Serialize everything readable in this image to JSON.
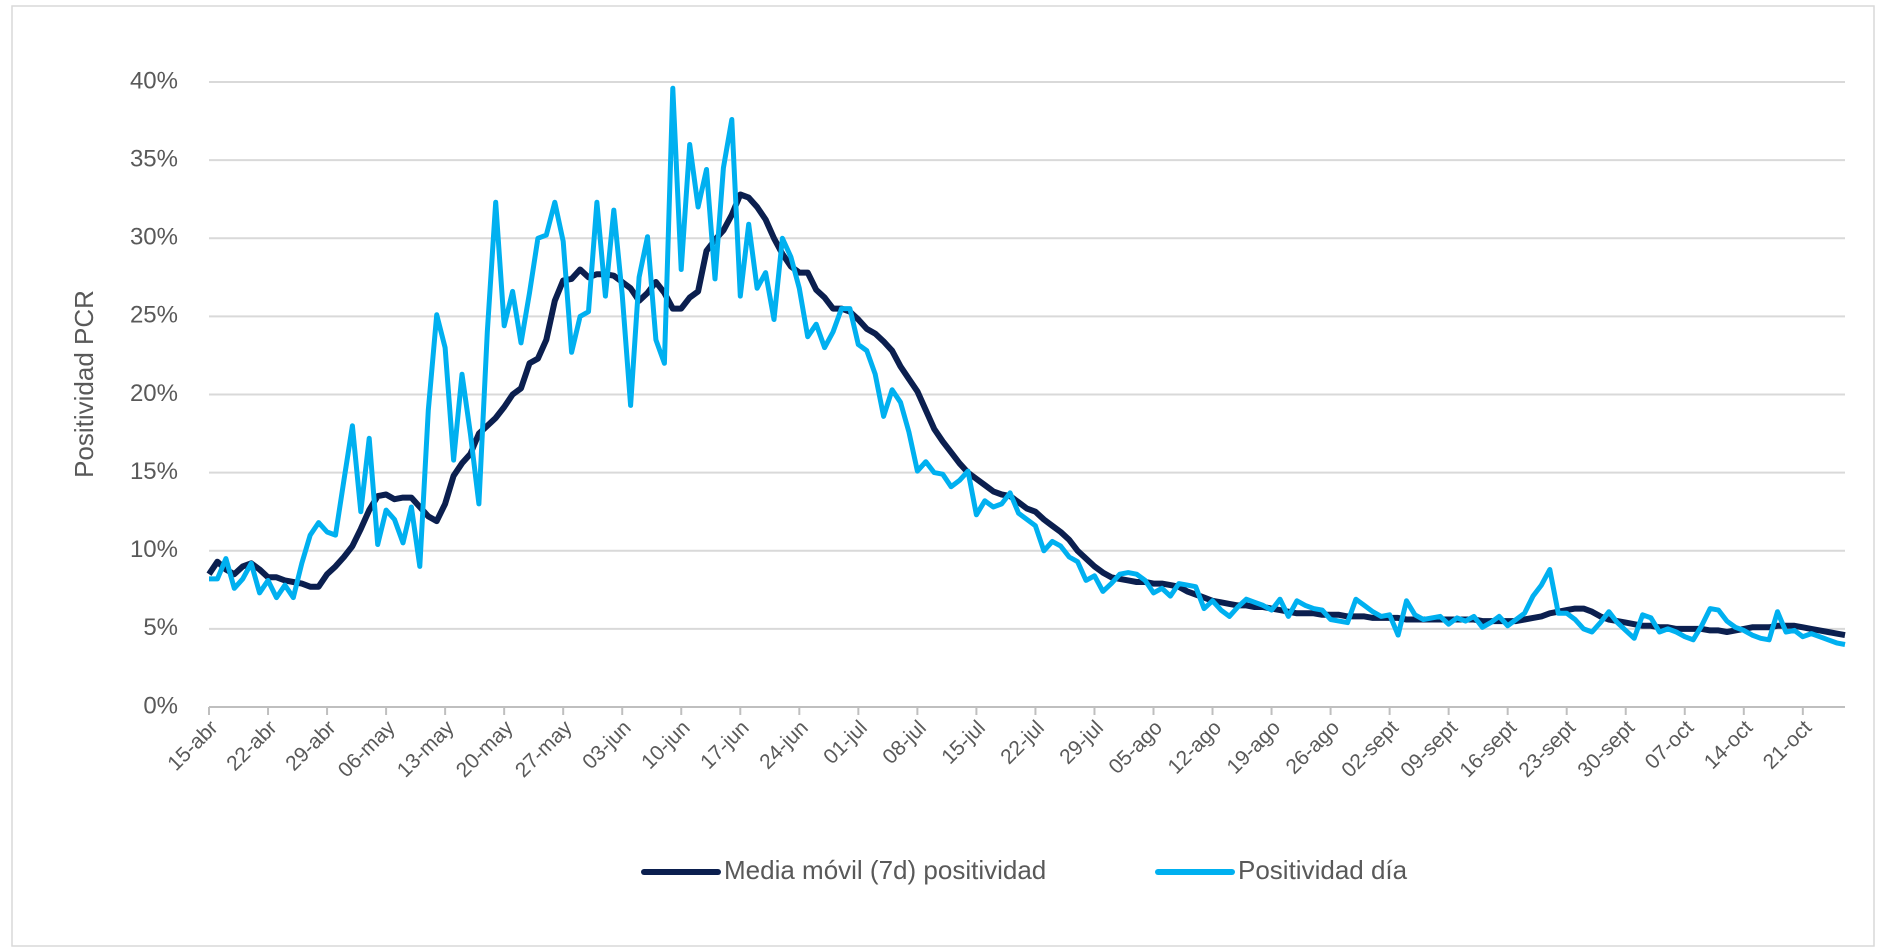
{
  "chart_data": {
    "type": "line",
    "y_label": "Positividad PCR",
    "legend": "bottom",
    "grid": true,
    "ylim": [
      0,
      40
    ],
    "yticks": [
      {
        "value": 0,
        "label": "0%"
      },
      {
        "value": 5,
        "label": "5%"
      },
      {
        "value": 10,
        "label": "10%"
      },
      {
        "value": 15,
        "label": "15%"
      },
      {
        "value": 20,
        "label": "20%"
      },
      {
        "value": 25,
        "label": "25%"
      },
      {
        "value": 30,
        "label": "30%"
      },
      {
        "value": 35,
        "label": "35%"
      },
      {
        "value": 40,
        "label": "40%"
      }
    ],
    "categories": [
      "15-abr",
      null,
      null,
      null,
      null,
      null,
      null,
      "22-abr",
      null,
      null,
      null,
      null,
      null,
      null,
      "29-abr",
      null,
      null,
      null,
      null,
      null,
      null,
      "06-may",
      null,
      null,
      null,
      null,
      null,
      null,
      "13-may",
      null,
      null,
      null,
      null,
      null,
      null,
      "20-may",
      null,
      null,
      null,
      null,
      null,
      null,
      "27-may",
      null,
      null,
      null,
      null,
      null,
      null,
      "03-jun",
      null,
      null,
      null,
      null,
      null,
      null,
      "10-jun",
      null,
      null,
      null,
      null,
      null,
      null,
      "17-jun",
      null,
      null,
      null,
      null,
      null,
      null,
      "24-jun",
      null,
      null,
      null,
      null,
      null,
      null,
      "01-jul",
      null,
      null,
      null,
      null,
      null,
      null,
      "08-jul",
      null,
      null,
      null,
      null,
      null,
      null,
      "15-jul",
      null,
      null,
      null,
      null,
      null,
      null,
      "22-jul",
      null,
      null,
      null,
      null,
      null,
      null,
      "29-jul",
      null,
      null,
      null,
      null,
      null,
      null,
      "05-ago",
      null,
      null,
      null,
      null,
      null,
      null,
      "12-ago",
      null,
      null,
      null,
      null,
      null,
      null,
      "19-ago",
      null,
      null,
      null,
      null,
      null,
      null,
      "26-ago",
      null,
      null,
      null,
      null,
      null,
      null,
      "02-sept",
      null,
      null,
      null,
      null,
      null,
      null,
      "09-sept",
      null,
      null,
      null,
      null,
      null,
      null,
      "16-sept",
      null,
      null,
      null,
      null,
      null,
      null,
      "23-sept",
      null,
      null,
      null,
      null,
      null,
      null,
      "30-sept",
      null,
      null,
      null,
      null,
      null,
      null,
      "07-oct",
      null,
      null,
      null,
      null,
      null,
      null,
      "14-oct",
      null,
      null,
      null,
      null,
      null,
      null,
      "21-oct",
      null,
      null,
      null,
      null,
      null
    ],
    "series": [
      {
        "name": "Media móvil (7d) positividad",
        "color": "#0b1f4f",
        "values": [
          8.5,
          9.3,
          8.8,
          8.5,
          9.0,
          9.2,
          8.8,
          8.3,
          8.3,
          8.1,
          8.0,
          7.9,
          7.7,
          7.7,
          8.5,
          9.0,
          9.6,
          10.3,
          11.4,
          12.6,
          13.5,
          13.6,
          13.3,
          13.4,
          13.4,
          12.8,
          12.2,
          11.9,
          13.0,
          14.8,
          15.6,
          16.2,
          17.5,
          18.0,
          18.5,
          19.2,
          20.0,
          20.4,
          22.0,
          22.3,
          23.5,
          26.0,
          27.3,
          27.4,
          28.0,
          27.5,
          27.7,
          27.7,
          27.6,
          27.2,
          26.8,
          26.0,
          26.5,
          27.2,
          26.5,
          25.5,
          25.5,
          26.2,
          26.6,
          29.2,
          29.9,
          30.5,
          31.5,
          32.8,
          32.6,
          32.0,
          31.2,
          30.0,
          29.0,
          28.2,
          27.8,
          27.8,
          26.7,
          26.2,
          25.5,
          25.5,
          25.3,
          24.8,
          24.2,
          23.9,
          23.4,
          22.8,
          21.8,
          21.0,
          20.2,
          19.0,
          17.8,
          17.0,
          16.3,
          15.6,
          15.0,
          14.6,
          14.2,
          13.8,
          13.6,
          13.5,
          13.1,
          12.7,
          12.5,
          12.0,
          11.6,
          11.2,
          10.7,
          10.0,
          9.5,
          9.0,
          8.6,
          8.3,
          8.2,
          8.1,
          8.0,
          8.0,
          7.9,
          7.9,
          7.8,
          7.7,
          7.4,
          7.2,
          7.0,
          6.8,
          6.7,
          6.6,
          6.5,
          6.5,
          6.4,
          6.4,
          6.3,
          6.2,
          6.1,
          6.0,
          6.0,
          6.0,
          5.9,
          5.9,
          5.9,
          5.8,
          5.8,
          5.8,
          5.7,
          5.7,
          5.7,
          5.7,
          5.6,
          5.6,
          5.6,
          5.6,
          5.6,
          5.6,
          5.6,
          5.6,
          5.6,
          5.5,
          5.5,
          5.5,
          5.5,
          5.5,
          5.6,
          5.7,
          5.8,
          6.0,
          6.1,
          6.2,
          6.3,
          6.3,
          6.1,
          5.8,
          5.6,
          5.5,
          5.4,
          5.3,
          5.2,
          5.2,
          5.1,
          5.1,
          5.0,
          5.0,
          5.0,
          5.0,
          4.9,
          4.9,
          4.8,
          4.9,
          5.0,
          5.1,
          5.1,
          5.1,
          5.2,
          5.2,
          5.2,
          5.1,
          5.0,
          4.9,
          4.8,
          4.7,
          4.6
        ]
      },
      {
        "name": "Positividad día",
        "color": "#00b0f0",
        "values": [
          8.2,
          8.2,
          9.5,
          7.6,
          8.2,
          9.2,
          7.3,
          8.1,
          7.0,
          7.8,
          7.0,
          9.2,
          11.0,
          11.8,
          11.2,
          11.0,
          14.5,
          18.0,
          12.5,
          17.2,
          10.4,
          12.6,
          12.0,
          10.5,
          12.8,
          9.0,
          19.0,
          25.1,
          23.0,
          15.8,
          21.3,
          17.5,
          13.0,
          24.0,
          32.3,
          24.4,
          26.6,
          23.3,
          26.5,
          30.0,
          30.2,
          32.3,
          29.8,
          22.7,
          25.0,
          25.3,
          32.3,
          26.3,
          31.8,
          26.4,
          19.3,
          27.5,
          30.1,
          23.5,
          22.0,
          39.6,
          28.0,
          36.0,
          32.0,
          34.4,
          27.4,
          34.5,
          37.6,
          26.3,
          30.9,
          26.8,
          27.8,
          24.8,
          30.0,
          28.8,
          26.8,
          23.7,
          24.5,
          23.0,
          24.0,
          25.5,
          25.5,
          23.2,
          22.8,
          21.3,
          18.6,
          20.3,
          19.5,
          17.6,
          15.1,
          15.7,
          15.0,
          14.9,
          14.1,
          14.5,
          15.1,
          12.3,
          13.2,
          12.8,
          13.0,
          13.7,
          12.4,
          12.0,
          11.6,
          10.0,
          10.6,
          10.3,
          9.6,
          9.3,
          8.1,
          8.4,
          7.4,
          7.9,
          8.5,
          8.6,
          8.5,
          8.1,
          7.3,
          7.6,
          7.1,
          7.9,
          7.8,
          7.7,
          6.3,
          6.8,
          6.2,
          5.8,
          6.4,
          6.9,
          6.7,
          6.5,
          6.2,
          6.9,
          5.8,
          6.8,
          6.5,
          6.3,
          6.2,
          5.6,
          5.5,
          5.4,
          6.9,
          6.5,
          6.1,
          5.8,
          5.9,
          4.6,
          6.8,
          5.9,
          5.6,
          5.7,
          5.8,
          5.3,
          5.7,
          5.5,
          5.8,
          5.1,
          5.4,
          5.8,
          5.2,
          5.6,
          6.0,
          7.1,
          7.8,
          8.8,
          6.0,
          6.0,
          5.6,
          5.0,
          4.8,
          5.4,
          6.1,
          5.4,
          4.9,
          4.4,
          5.9,
          5.7,
          4.8,
          5.0,
          4.8,
          4.5,
          4.3,
          5.2,
          6.3,
          6.2,
          5.5,
          5.1,
          4.9,
          4.6,
          4.4,
          4.3,
          6.1,
          4.8,
          4.9,
          4.5,
          4.7,
          4.5,
          4.3,
          4.1,
          4.0
        ]
      }
    ]
  }
}
